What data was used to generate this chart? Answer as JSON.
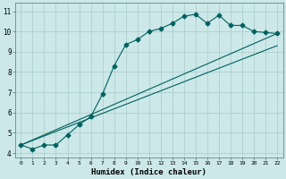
{
  "xlabel": "Humidex (Indice chaleur)",
  "ylabel": "",
  "bg_color": "#cce8e8",
  "grid_color": "#aacaca",
  "line_color": "#006060",
  "xlim": [
    -0.5,
    22.5
  ],
  "ylim": [
    3.8,
    11.4
  ],
  "xticks": [
    0,
    1,
    2,
    3,
    4,
    5,
    6,
    7,
    8,
    9,
    10,
    11,
    12,
    13,
    14,
    15,
    16,
    17,
    18,
    19,
    20,
    21,
    22
  ],
  "yticks": [
    4,
    5,
    6,
    7,
    8,
    9,
    10,
    11
  ],
  "line1_x": [
    0,
    1,
    2,
    3,
    4,
    5,
    6,
    7,
    8,
    9,
    10,
    11,
    12,
    13,
    14,
    15,
    16,
    17,
    18,
    19,
    20,
    21,
    22
  ],
  "line1_y": [
    4.4,
    4.2,
    4.4,
    4.4,
    4.9,
    5.4,
    5.8,
    6.9,
    8.3,
    9.35,
    9.6,
    10.0,
    10.15,
    10.4,
    10.75,
    10.85,
    10.4,
    10.8,
    10.3,
    10.3,
    10.0,
    9.95,
    9.9
  ],
  "line2_x": [
    0,
    22
  ],
  "line2_y": [
    4.4,
    9.9
  ],
  "line3_x": [
    0,
    22
  ],
  "line3_y": [
    4.4,
    9.3
  ]
}
